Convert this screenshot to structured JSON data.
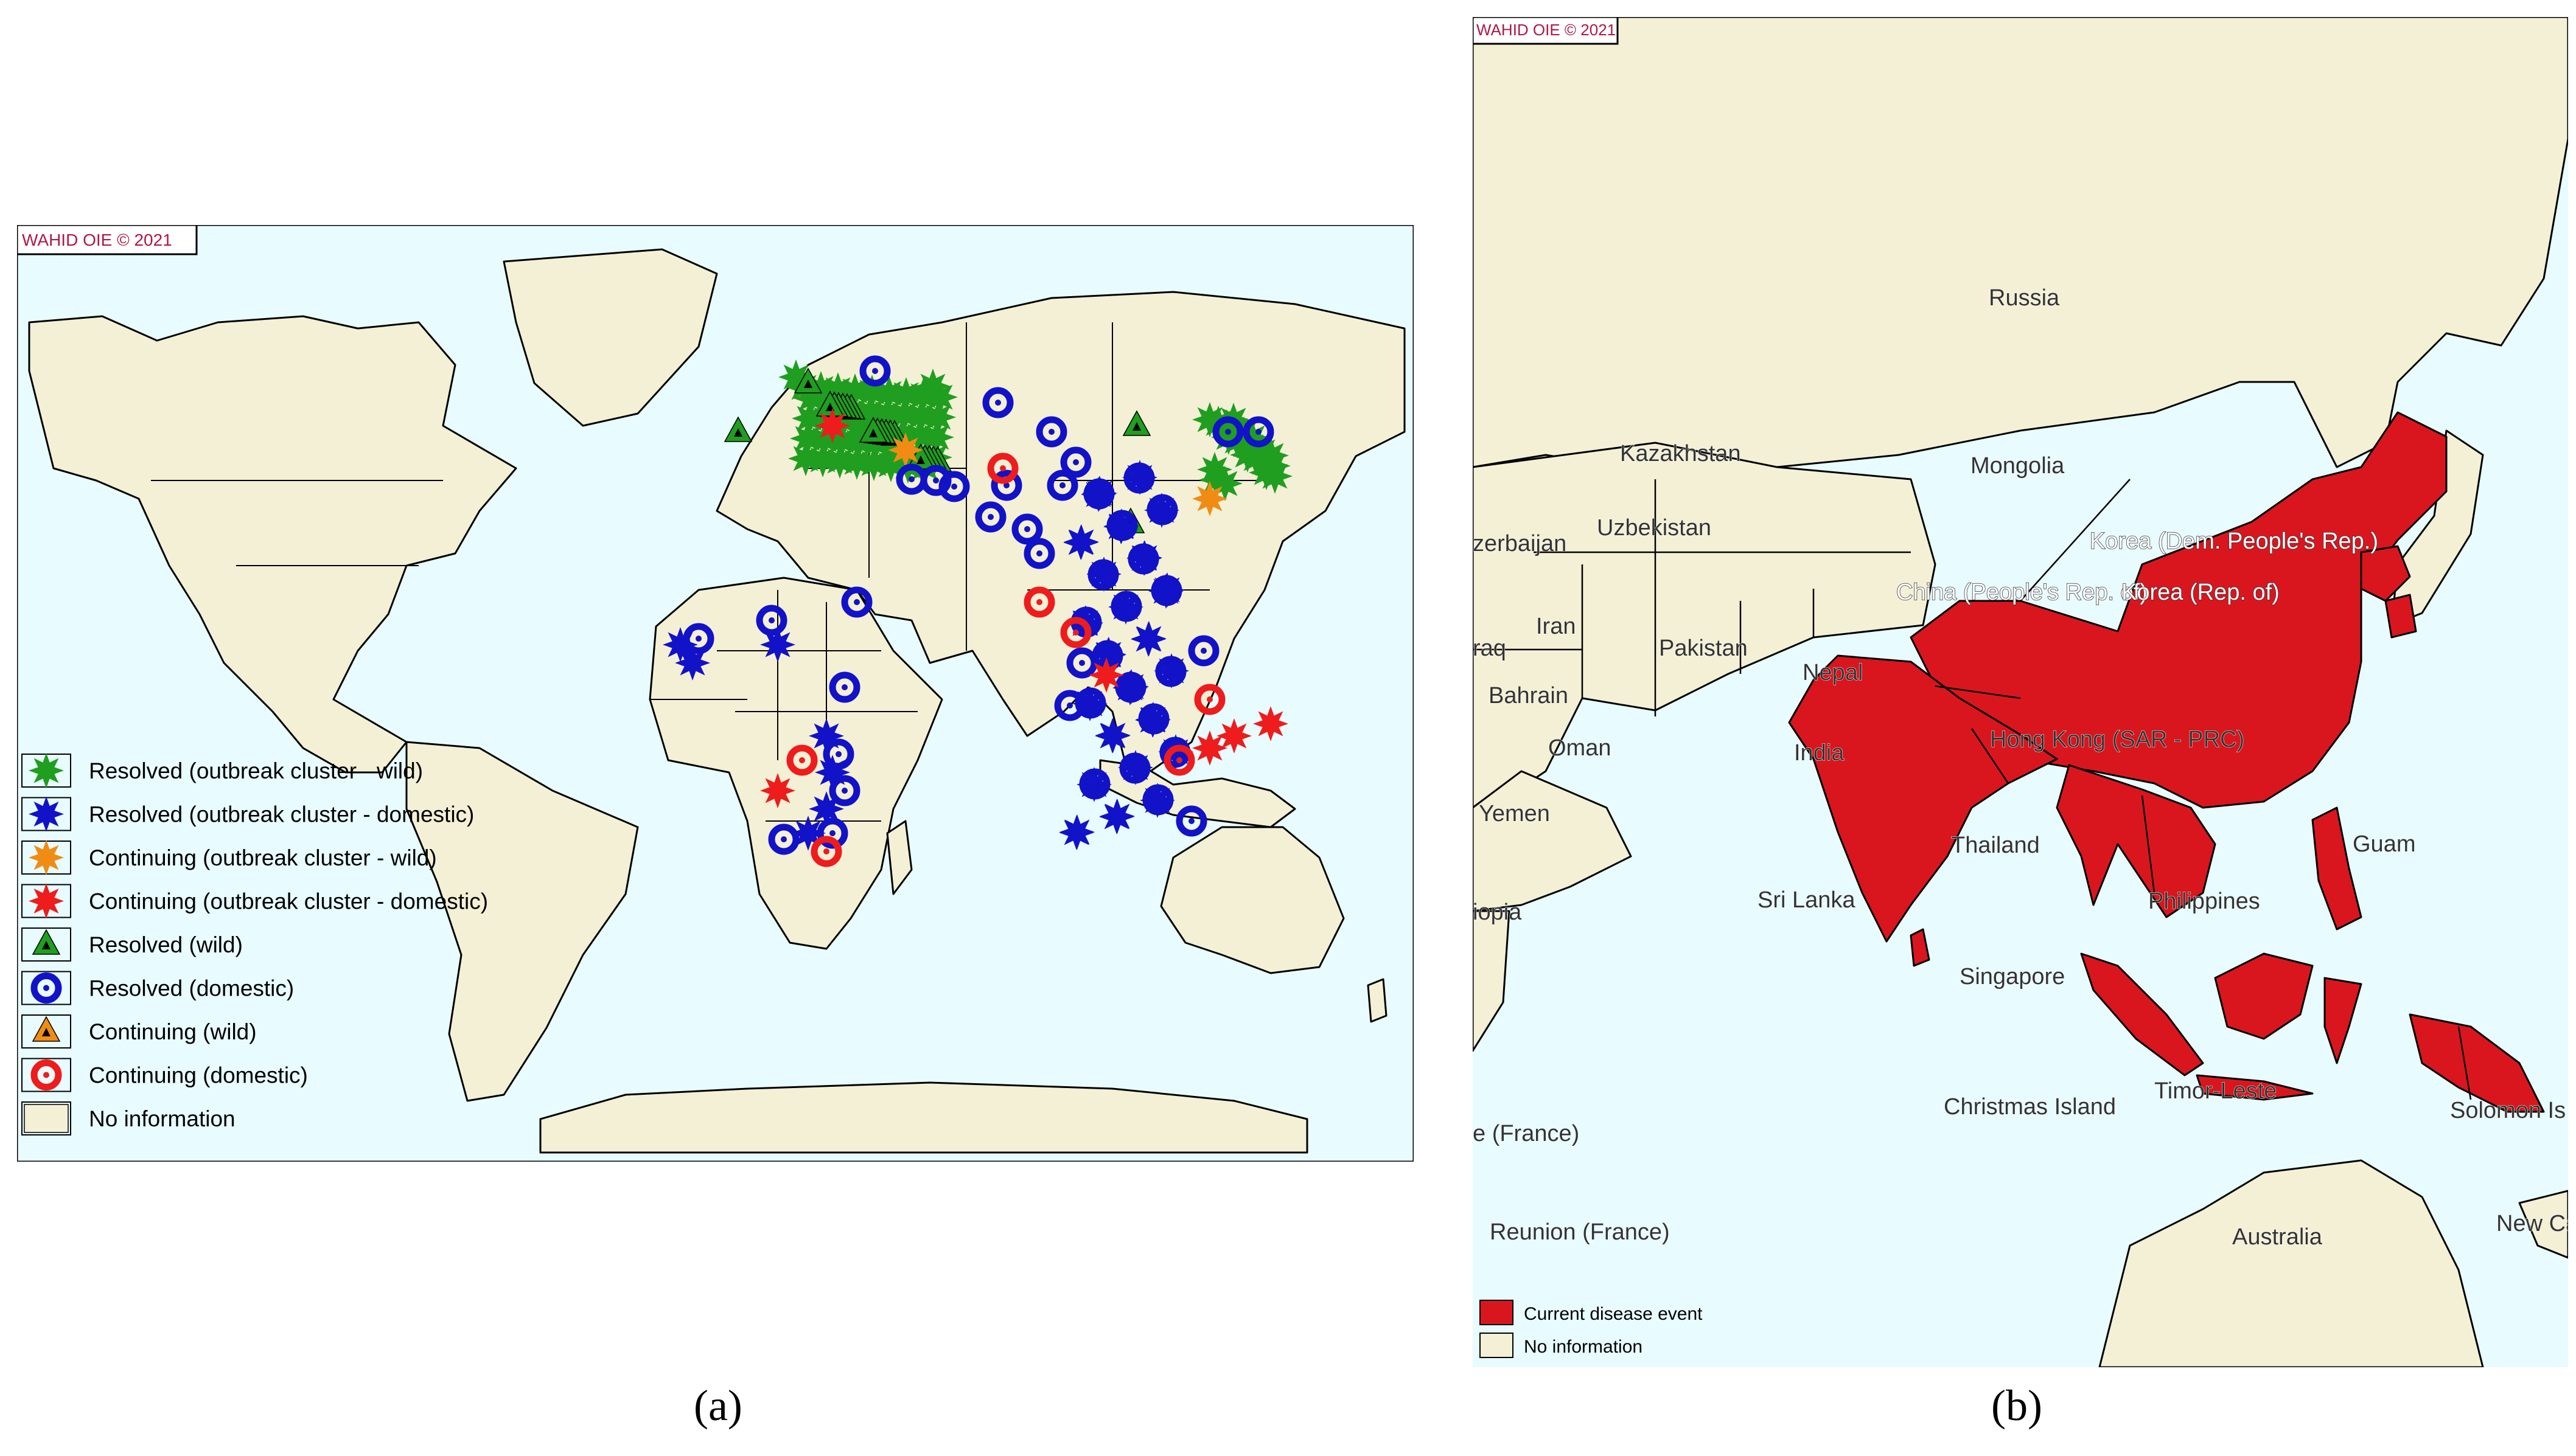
{
  "colors": {
    "ocean": "#e8fbff",
    "land": "#f4f0d6",
    "border": "#000000",
    "affected": "#d9161e",
    "copyright_text": "#b01845",
    "resolved_green": "#1f9e1f",
    "domestic_blue": "#1212c8",
    "continuing_orange": "#f08c14",
    "continuing_red": "#ee1c1c"
  },
  "panel_a": {
    "copyright": "WAHID OIE © 2021",
    "caption": "(a)",
    "legend": [
      {
        "label": "Resolved (outbreak cluster - wild)",
        "icon": "green-star-cluster-icon",
        "color": "#1f9e1f"
      },
      {
        "label": "Resolved (outbreak cluster - domestic)",
        "icon": "blue-star-cluster-icon",
        "color": "#1212c8"
      },
      {
        "label": "Continuing (outbreak cluster - wild)",
        "icon": "orange-star-cluster-icon",
        "color": "#f08c14"
      },
      {
        "label": "Continuing (outbreak cluster - domestic)",
        "icon": "red-star-cluster-icon",
        "color": "#ee1c1c"
      },
      {
        "label": "Resolved (wild)",
        "icon": "green-triangle-icon",
        "color": "#1f9e1f"
      },
      {
        "label": "Resolved (domestic)",
        "icon": "blue-ring-icon",
        "color": "#1212c8"
      },
      {
        "label": "Continuing (wild)",
        "icon": "orange-triangle-icon",
        "color": "#f08c14"
      },
      {
        "label": "Continuing (domestic)",
        "icon": "red-ring-icon",
        "color": "#ee1c1c"
      },
      {
        "label": "No information",
        "icon": "land-swatch-icon",
        "color": "#f4f0d6"
      }
    ]
  },
  "panel_b": {
    "copyright": "WAHID OIE © 2021",
    "caption": "(b)",
    "legend": [
      {
        "label": "Current disease event",
        "icon": "red-swatch-icon",
        "color": "#d9161e"
      },
      {
        "label": "No information",
        "icon": "land-swatch-icon",
        "color": "#f4f0d6"
      }
    ],
    "labels": {
      "russia": "Russia",
      "kazakhstan": "Kazakhstan",
      "mongolia": "Mongolia",
      "uzbekistan": "Uzbekistan",
      "azerbaijan": "zerbaijan",
      "iran": "Iran",
      "iraq": "raq",
      "pakistan": "Pakistan",
      "bahrain": "Bahrain",
      "oman": "Oman",
      "yemen": "Yemen",
      "ethiopia": "iopia",
      "nepal": "Nepal",
      "india": "India",
      "sri_lanka": "Sri Lanka",
      "china": "China (People's Rep. of)",
      "korea_dpr": "Korea (Dem. People's Rep.)",
      "korea_rep": "Korea (Rep. of)",
      "hong_kong": "Hong Kong (SAR - PRC)",
      "thailand": "Thailand",
      "philippines": "Philippines",
      "guam": "Guam",
      "singapore": "Singapore",
      "christmas_island": "Christmas Island",
      "timor_leste": "Timor-Leste",
      "solomon": "Solomon Is",
      "france_top": "e (France)",
      "reunion": "Reunion (France)",
      "australia": "Australia",
      "new_caledonia": "New Ca"
    }
  }
}
